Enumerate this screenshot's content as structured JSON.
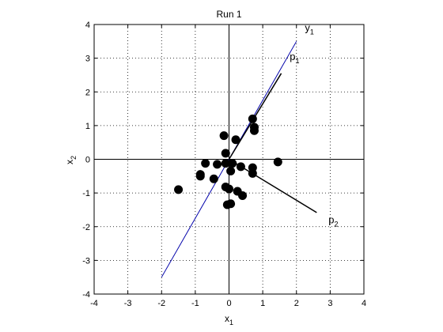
{
  "chart_data": {
    "type": "scatter",
    "title": "Run 1",
    "xlabel": {
      "main": "x",
      "sub": "1"
    },
    "ylabel": {
      "main": "x",
      "sub": "2"
    },
    "xlim": [
      -4,
      4
    ],
    "ylim": [
      -4,
      4
    ],
    "xticks": [
      -4,
      -3,
      -2,
      -1,
      0,
      1,
      2,
      3,
      4
    ],
    "yticks": [
      -4,
      -3,
      -2,
      -1,
      0,
      1,
      2,
      3,
      4
    ],
    "grid": true,
    "points": [
      [
        -1.5,
        -0.9
      ],
      [
        -0.85,
        -0.45
      ],
      [
        -0.85,
        -0.5
      ],
      [
        -0.7,
        -0.12
      ],
      [
        -0.45,
        -0.58
      ],
      [
        -0.35,
        -0.15
      ],
      [
        -0.15,
        0.7
      ],
      [
        -0.1,
        0.18
      ],
      [
        -0.1,
        -0.12
      ],
      [
        -0.1,
        -0.82
      ],
      [
        0.0,
        -0.88
      ],
      [
        -0.05,
        -1.35
      ],
      [
        0.05,
        -1.32
      ],
      [
        0.05,
        -0.35
      ],
      [
        0.1,
        -0.12
      ],
      [
        0.2,
        0.58
      ],
      [
        0.25,
        -0.95
      ],
      [
        0.35,
        -0.22
      ],
      [
        0.4,
        -1.08
      ],
      [
        0.7,
        1.2
      ],
      [
        0.75,
        0.95
      ],
      [
        0.75,
        0.85
      ],
      [
        0.7,
        -0.25
      ],
      [
        0.7,
        -0.42
      ],
      [
        1.45,
        -0.08
      ]
    ],
    "lines": [
      {
        "name": "y",
        "sub": "1",
        "color": "#0000aa",
        "from": [
          -2.0,
          -3.5
        ],
        "to": [
          2.0,
          3.5
        ]
      },
      {
        "name": "p",
        "sub": "1",
        "color": "#000000",
        "from": [
          0.0,
          0.0
        ],
        "to": [
          1.55,
          2.55
        ]
      },
      {
        "name": "p",
        "sub": "2",
        "color": "#000000",
        "from": [
          0.0,
          0.0
        ],
        "to": [
          2.6,
          -1.58
        ]
      }
    ],
    "annotations": [
      {
        "text": "y",
        "sub": "1",
        "x": 2.25,
        "y": 3.8
      },
      {
        "text": "p",
        "sub": "1",
        "x": 1.8,
        "y": 2.95
      },
      {
        "text": "p",
        "sub": "2",
        "x": 2.95,
        "y": -1.9
      }
    ]
  }
}
